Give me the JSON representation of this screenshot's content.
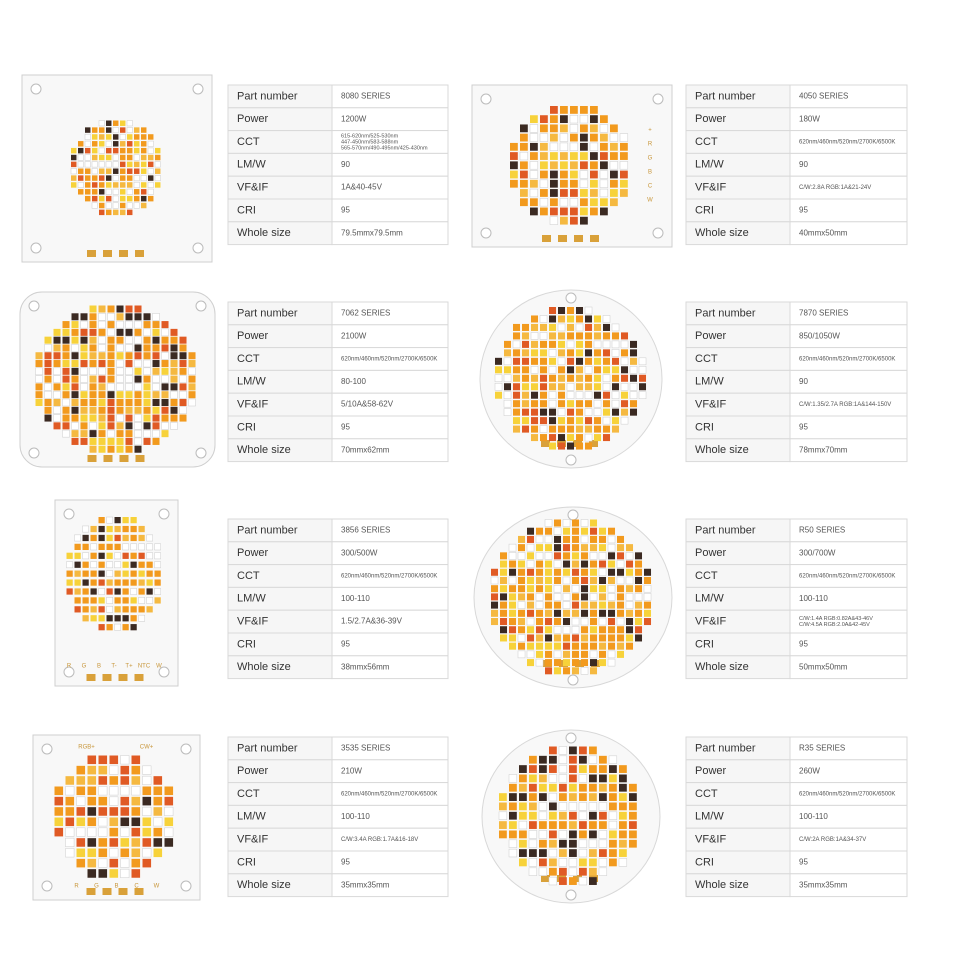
{
  "products": [
    {
      "specs": [
        [
          "Part number",
          "8080 SERIES"
        ],
        [
          "Power",
          "1200W"
        ],
        [
          "CCT",
          [
            "615-620nm/525-530nm",
            "447-450nm/583-588nm",
            "565-570nm/490-495nm/425-430nm"
          ]
        ],
        [
          "LM/W",
          "90"
        ],
        [
          "VF&IF",
          "1A&40-45V"
        ],
        [
          "CRI",
          "95"
        ],
        [
          "Whole size",
          "79.5mmx79.5mm"
        ]
      ]
    },
    {
      "specs": [
        [
          "Part number",
          "4050 SERIES"
        ],
        [
          "Power",
          "180W"
        ],
        [
          "CCT",
          "620nm/460nm/520nm/2700K/6500K"
        ],
        [
          "LM/W",
          "90"
        ],
        [
          "VF&IF",
          "C/W:2.8A RGB:1A&21-24V"
        ],
        [
          "CRI",
          "95"
        ],
        [
          "Whole size",
          "40mmx50mm"
        ]
      ],
      "board_text": [
        "+",
        "R",
        "G",
        "B",
        "C",
        "W"
      ]
    },
    {
      "specs": [
        [
          "Part number",
          "7062 SERIES"
        ],
        [
          "Power",
          "2100W"
        ],
        [
          "CCT",
          "620nm/460nm/520nm/2700K/6500K"
        ],
        [
          "LM/W",
          "80-100"
        ],
        [
          "VF&IF",
          "5/10A&58-62V"
        ],
        [
          "CRI",
          "95"
        ],
        [
          "Whole size",
          "70mmx62mm"
        ]
      ]
    },
    {
      "specs": [
        [
          "Part number",
          "7870 SERIES"
        ],
        [
          "Power",
          "850/1050W"
        ],
        [
          "CCT",
          "620nm/460nm/520nm/2700K/6500K"
        ],
        [
          "LM/W",
          "90"
        ],
        [
          "VF&IF",
          "C/W:1.35/2.7A RGB:1A&144-150V"
        ],
        [
          "CRI",
          "95"
        ],
        [
          "Whole size",
          "78mmx70mm"
        ]
      ]
    },
    {
      "specs": [
        [
          "Part number",
          "3856 SERIES"
        ],
        [
          "Power",
          "300/500W"
        ],
        [
          "CCT",
          "620nm/460nm/520nm/2700K/6500K"
        ],
        [
          "LM/W",
          "100-110"
        ],
        [
          "VF&IF",
          "1.5/2.7A&36-39V"
        ],
        [
          "CRI",
          "95"
        ],
        [
          "Whole size",
          "38mmx56mm"
        ]
      ],
      "board_text": [
        "R",
        "G",
        "B",
        "T-",
        "T+",
        "NTC",
        "W"
      ]
    },
    {
      "specs": [
        [
          "Part number",
          "R50 SERIES"
        ],
        [
          "Power",
          "300/700W"
        ],
        [
          "CCT",
          "620nm/460nm/520nm/2700K/6500K"
        ],
        [
          "LM/W",
          "100-110"
        ],
        [
          "VF&IF",
          [
            "C/W:1.4A RGB:0.82A&43-46V",
            "C/W:4.5A RGB:2.0A&42-45V"
          ]
        ],
        [
          "CRI",
          "95"
        ],
        [
          "Whole size",
          "50mmx50mm"
        ]
      ]
    },
    {
      "specs": [
        [
          "Part number",
          "3535 SERIES"
        ],
        [
          "Power",
          "210W"
        ],
        [
          "CCT",
          "620nm/460nm/520nm/2700K/6500K"
        ],
        [
          "LM/W",
          "100-110"
        ],
        [
          "VF&IF",
          "C/W:3.4A RGB:1.7A&16-18V"
        ],
        [
          "CRI",
          "95"
        ],
        [
          "Whole size",
          "35mmx35mm"
        ]
      ],
      "board_text": [
        "RGB+",
        "CW+",
        "R",
        "G",
        "B",
        "C",
        "W"
      ]
    },
    {
      "specs": [
        [
          "Part number",
          "R35 SERIES"
        ],
        [
          "Power",
          "260W"
        ],
        [
          "CCT",
          "620nm/460nm/520nm/2700K/6500K"
        ],
        [
          "LM/W",
          "100-110"
        ],
        [
          "VF&IF",
          "C/W:2A RGB:1A&34-37V"
        ],
        [
          "CRI",
          "95"
        ],
        [
          "Whole size",
          "35mmx35mm"
        ]
      ]
    }
  ]
}
